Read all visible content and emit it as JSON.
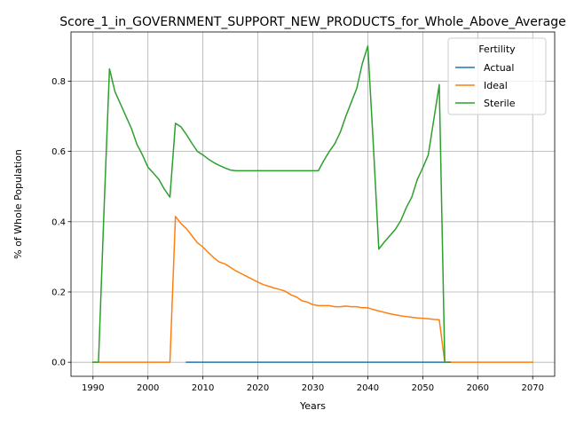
{
  "chart_data": {
    "type": "line",
    "title": "Score_1_in_GOVERNMENT_SUPPORT_NEW_PRODUCTS_for_Whole_Above_Average",
    "xlabel": "Years",
    "ylabel": "% of Whole Population",
    "xlim": [
      1986,
      2074
    ],
    "ylim": [
      -0.04,
      0.94
    ],
    "xticks": [
      1990,
      2000,
      2010,
      2020,
      2030,
      2040,
      2050,
      2060,
      2070
    ],
    "yticks": [
      0.0,
      0.2,
      0.4,
      0.6,
      0.8
    ],
    "ytick_labels": [
      "0.0",
      "0.2",
      "0.4",
      "0.6",
      "0.8"
    ],
    "grid": true,
    "legend": {
      "title": "Fertility",
      "placement": "top-right"
    },
    "series": [
      {
        "name": "Actual",
        "color": "#1f77b4",
        "x": [
          2007,
          2055
        ],
        "y": [
          0.0,
          0.0
        ]
      },
      {
        "name": "Ideal",
        "color": "#ff7f0e",
        "x": [
          1990,
          1991,
          1995,
          2000,
          2004,
          2005,
          2006,
          2007,
          2008,
          2009,
          2010,
          2011,
          2012,
          2013,
          2014,
          2015,
          2016,
          2017,
          2018,
          2019,
          2020,
          2021,
          2022,
          2023,
          2024,
          2025,
          2026,
          2027,
          2028,
          2029,
          2030,
          2031,
          2032,
          2033,
          2034,
          2035,
          2036,
          2037,
          2038,
          2039,
          2040,
          2041,
          2042,
          2043,
          2044,
          2045,
          2046,
          2047,
          2048,
          2049,
          2050,
          2051,
          2052,
          2053,
          2054,
          2055,
          2060,
          2065,
          2070
        ],
        "y": [
          0.0,
          0.0,
          0.0,
          0.0,
          0.0,
          0.415,
          0.395,
          0.38,
          0.36,
          0.34,
          0.328,
          0.312,
          0.297,
          0.285,
          0.28,
          0.27,
          0.26,
          0.252,
          0.244,
          0.236,
          0.228,
          0.221,
          0.216,
          0.211,
          0.207,
          0.202,
          0.192,
          0.186,
          0.175,
          0.171,
          0.164,
          0.161,
          0.161,
          0.161,
          0.158,
          0.158,
          0.16,
          0.158,
          0.158,
          0.155,
          0.155,
          0.15,
          0.146,
          0.142,
          0.138,
          0.135,
          0.132,
          0.13,
          0.128,
          0.126,
          0.125,
          0.124,
          0.122,
          0.121,
          0.0,
          0.0,
          0.0,
          0.0,
          0.0
        ]
      },
      {
        "name": "Sterile",
        "color": "#2ca02c",
        "x": [
          1990,
          1991,
          1992,
          1993,
          1994,
          1995,
          1996,
          1997,
          1998,
          1999,
          2000,
          2001,
          2002,
          2003,
          2004,
          2005,
          2006,
          2007,
          2008,
          2009,
          2010,
          2011,
          2012,
          2013,
          2014,
          2015,
          2016,
          2020,
          2025,
          2031,
          2032,
          2033,
          2034,
          2035,
          2036,
          2037,
          2038,
          2039,
          2040,
          2041,
          2042,
          2043,
          2044,
          2045,
          2046,
          2047,
          2048,
          2049,
          2050,
          2051,
          2052,
          2053,
          2054,
          2055
        ],
        "y": [
          0.0,
          0.0,
          0.43,
          0.835,
          0.77,
          0.735,
          0.7,
          0.665,
          0.62,
          0.59,
          0.555,
          0.538,
          0.52,
          0.492,
          0.47,
          0.68,
          0.67,
          0.648,
          0.623,
          0.6,
          0.59,
          0.578,
          0.568,
          0.56,
          0.553,
          0.547,
          0.545,
          0.545,
          0.545,
          0.545,
          0.574,
          0.6,
          0.622,
          0.655,
          0.7,
          0.74,
          0.78,
          0.85,
          0.9,
          0.62,
          0.322,
          0.342,
          0.36,
          0.378,
          0.403,
          0.44,
          0.47,
          0.52,
          0.553,
          0.59,
          0.69,
          0.79,
          0.0,
          0.0
        ]
      }
    ]
  }
}
